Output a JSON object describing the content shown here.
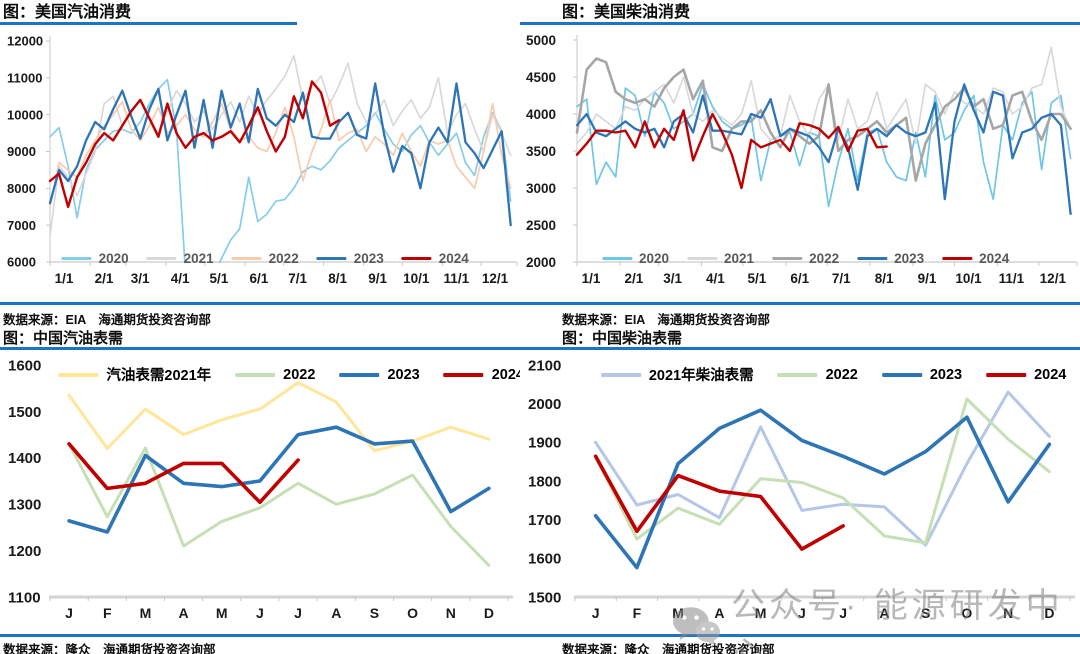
{
  "colors": {
    "accent_blue": "#1b74c5",
    "axis_line": "#c9c9c9",
    "axis_text": "#1a1a1a",
    "watermark_gray": "#7f7f7f"
  },
  "watermark": {
    "icon": "wechat-icon",
    "text": "公众号· 能源研发中心"
  },
  "chart_data": [
    {
      "type": "line",
      "title": "图：美国汽油消费",
      "source": "数据来源：EIA　海通期货投资咨询部",
      "x_mode": "weekly",
      "x_labels": [
        "1/1",
        "2/1",
        "3/1",
        "4/1",
        "5/1",
        "6/1",
        "7/1",
        "8/1",
        "9/1",
        "10/1",
        "11/1",
        "12/1"
      ],
      "ylim": [
        6000,
        12000
      ],
      "ystep": 1000,
      "grid": false,
      "legend_position": "bottom-center",
      "legend_text_color": "#595959",
      "series": [
        {
          "name": "2020",
          "color": "#86cdeb",
          "width": 1.7,
          "values": [
            9400,
            9650,
            8600,
            7200,
            8500,
            9050,
            9300,
            9550,
            9600,
            9500,
            9800,
            10300,
            10700,
            10950,
            9600,
            5700,
            5100,
            5300,
            5600,
            6100,
            6600,
            6900,
            8300,
            7100,
            7300,
            7650,
            7700,
            8000,
            8450,
            8600,
            8500,
            8750,
            9100,
            9300,
            9500,
            9700,
            10050,
            9600,
            9200,
            9000,
            9450,
            9700,
            9250,
            8900,
            9200,
            9500,
            8700,
            8350,
            9400,
            10050,
            9550,
            7650
          ]
        },
        {
          "name": "2021",
          "color": "#d9d9d9",
          "width": 1.7,
          "values": [
            6700,
            8600,
            8300,
            7800,
            8400,
            9000,
            10300,
            10500,
            9700,
            10050,
            10400,
            9900,
            9500,
            10100,
            10650,
            10300,
            9800,
            10100,
            9600,
            10000,
            10350,
            9800,
            10500,
            10000,
            10400,
            10700,
            11050,
            11600,
            10400,
            10750,
            11050,
            10300,
            10800,
            11400,
            10300,
            9800,
            10000,
            10400,
            9700,
            10100,
            10400,
            9900,
            10200,
            11000,
            9500,
            10000,
            10300,
            9600,
            9000,
            10000,
            9500,
            8900
          ]
        },
        {
          "name": "2022",
          "color": "#f8cbad",
          "width": 1.7,
          "values": [
            7500,
            8700,
            8500,
            8300,
            8900,
            9300,
            9700,
            10000,
            10350,
            9600,
            9300,
            9700,
            10200,
            9500,
            9700,
            10000,
            9600,
            9400,
            9800,
            10300,
            9600,
            9300,
            9400,
            9100,
            9000,
            9500,
            10200,
            9400,
            8200,
            9000,
            9600,
            10400,
            9300,
            9500,
            9600,
            9000,
            9400,
            9200,
            8900,
            9500,
            9000,
            8600,
            9300,
            9200,
            9300,
            8600,
            8300,
            8000,
            9000,
            10300,
            8900,
            8000
          ]
        },
        {
          "name": "2023",
          "color": "#2e75b6",
          "width": 2.3,
          "values": [
            7600,
            8500,
            8200,
            8600,
            9300,
            9800,
            9600,
            10150,
            10650,
            9950,
            9350,
            10150,
            10700,
            9300,
            10000,
            10650,
            9100,
            10400,
            9100,
            10650,
            9650,
            10300,
            9250,
            10700,
            9900,
            9700,
            10000,
            9800,
            10600,
            9400,
            9350,
            9350,
            9800,
            10050,
            9450,
            9350,
            10850,
            9450,
            8450,
            9150,
            8950,
            8000,
            9250,
            9650,
            9250,
            10850,
            9250,
            8950,
            8550,
            9050,
            9550,
            7000
          ]
        },
        {
          "name": "2024",
          "color": "#c00000",
          "width": 2.4,
          "values": [
            8200,
            8400,
            7500,
            8300,
            8700,
            9200,
            9500,
            9300,
            9700,
            10100,
            10400,
            9900,
            9400,
            10300,
            9500,
            9100,
            9400,
            9500,
            9300,
            9400,
            9550,
            9250,
            9700,
            10200,
            9550,
            9000,
            9400,
            10500,
            9900,
            10900,
            10600,
            9700,
            9850
          ]
        }
      ]
    },
    {
      "type": "line",
      "title": "图：美国柴油消费",
      "source": "数据来源：EIA　海通期货投资咨询部",
      "x_mode": "weekly",
      "x_labels": [
        "1/1",
        "2/1",
        "3/1",
        "4/1",
        "5/1",
        "6/1",
        "7/1",
        "8/1",
        "9/1",
        "10/1",
        "11/1",
        "12/1"
      ],
      "ylim": [
        2000,
        5000
      ],
      "ystep": 500,
      "grid": false,
      "legend_position": "bottom-center",
      "legend_text_color": "#595959",
      "series": [
        {
          "name": "2020",
          "color": "#6ec6e8",
          "width": 1.7,
          "values": [
            4100,
            4200,
            3050,
            3350,
            3150,
            4350,
            4250,
            3700,
            4300,
            4150,
            3800,
            3900,
            4000,
            4400,
            4100,
            3900,
            3800,
            3850,
            3950,
            3100,
            3650,
            3700,
            3750,
            3300,
            3750,
            3700,
            2750,
            3350,
            3800,
            3100,
            3750,
            3800,
            3350,
            3150,
            3100,
            3750,
            3150,
            4250,
            3650,
            3750,
            4050,
            4250,
            3350,
            2850,
            3850,
            3650,
            4150,
            4300,
            3250,
            4150,
            4250,
            3400
          ]
        },
        {
          "name": "2021",
          "color": "#d9d9d9",
          "width": 1.7,
          "values": [
            3600,
            3750,
            4000,
            3900,
            3800,
            4100,
            4050,
            4200,
            4300,
            4400,
            4150,
            4500,
            4000,
            3900,
            4050,
            3950,
            3850,
            4000,
            4450,
            3800,
            3650,
            3700,
            4250,
            3900,
            3700,
            4200,
            4400,
            3650,
            4200,
            3800,
            3900,
            4300,
            3800,
            4000,
            4200,
            3600,
            4400,
            4300,
            4000,
            4300,
            4150,
            4100,
            4000,
            4350,
            4300,
            4000,
            4100,
            4350,
            4400,
            4900,
            4100,
            3800
          ]
        },
        {
          "name": "2022",
          "color": "#a6a6a6",
          "width": 2.6,
          "values": [
            3750,
            4600,
            4750,
            4700,
            4300,
            4200,
            4150,
            4200,
            4100,
            4350,
            4500,
            4600,
            4200,
            4450,
            3550,
            3500,
            3800,
            3900,
            3900,
            4050,
            3750,
            3550,
            3800,
            3700,
            3600,
            3700,
            4400,
            3500,
            3650,
            3700,
            3800,
            3900,
            3750,
            3850,
            3950,
            3100,
            3600,
            3850,
            4100,
            4200,
            4350,
            4100,
            4200,
            3800,
            3850,
            4250,
            4300,
            3900,
            3650,
            4000,
            4000,
            3800
          ]
        },
        {
          "name": "2023",
          "color": "#2e75b6",
          "width": 2.3,
          "values": [
            3850,
            4000,
            3750,
            3700,
            3800,
            3900,
            3800,
            3750,
            3800,
            3550,
            3900,
            4000,
            3750,
            4250,
            3775,
            3775,
            3750,
            3725,
            4000,
            3950,
            4200,
            3700,
            3800,
            3750,
            3700,
            3550,
            3350,
            3800,
            3550,
            2975,
            3700,
            3800,
            3700,
            3850,
            3750,
            3700,
            3750,
            4150,
            2850,
            3900,
            4400,
            4050,
            3750,
            4300,
            4250,
            3400,
            3750,
            3800,
            3950,
            4000,
            3850,
            2650
          ]
        },
        {
          "name": "2024",
          "color": "#c00000",
          "width": 2.4,
          "values": [
            3450,
            3600,
            3775,
            3775,
            3750,
            3775,
            3550,
            3900,
            3550,
            3800,
            3650,
            4050,
            3375,
            3700,
            4000,
            3750,
            3450,
            3000,
            3650,
            3550,
            3600,
            3650,
            3500,
            3875,
            3850,
            3800,
            3675,
            3825,
            3500,
            3775,
            3800,
            3550,
            3560
          ]
        }
      ]
    },
    {
      "type": "line",
      "title": "图：中国汽油表需",
      "source": "数据来源：隆众　海通期货投资咨询部",
      "x_mode": "monthly",
      "x_labels": [
        "J",
        "F",
        "M",
        "A",
        "M",
        "J",
        "J",
        "A",
        "S",
        "O",
        "N",
        "D"
      ],
      "ylim": [
        1100,
        1600
      ],
      "ystep": 100,
      "grid": false,
      "legend_position": "top-center",
      "legend_text_color": "#000000",
      "series": [
        {
          "name": "汽油表需2021年",
          "color": "#ffe699",
          "width": 3,
          "values": [
            1535,
            1420,
            1505,
            1450,
            1482,
            1505,
            1562,
            1520,
            1415,
            1436,
            1466,
            1440
          ]
        },
        {
          "name": "2022",
          "color": "#c5e0b4",
          "width": 3,
          "values": [
            1430,
            1273,
            1421,
            1210,
            1263,
            1292,
            1345,
            1300,
            1322,
            1363,
            1252,
            1168
          ]
        },
        {
          "name": "2023",
          "color": "#2e75b6",
          "width": 3.6,
          "values": [
            1264,
            1240,
            1405,
            1345,
            1338,
            1350,
            1450,
            1466,
            1430,
            1436,
            1284,
            1334
          ]
        },
        {
          "name": "2024",
          "color": "#c00000",
          "width": 3.6,
          "values": [
            1430,
            1334,
            1345,
            1388,
            1388,
            1304,
            1395
          ]
        }
      ]
    },
    {
      "type": "line",
      "title": "图：中国柴油表需",
      "source": "数据来源：隆众　海通期货投资咨询部",
      "x_mode": "monthly",
      "x_labels": [
        "J",
        "F",
        "M",
        "A",
        "M",
        "J",
        "J",
        "A",
        "S",
        "O",
        "N",
        "D"
      ],
      "ylim": [
        1500,
        2100
      ],
      "ystep": 100,
      "grid": false,
      "legend_position": "top-center",
      "legend_text_color": "#000000",
      "series": [
        {
          "name": "2021年柴油表需",
          "color": "#b4c7e7",
          "width": 3,
          "values": [
            1900,
            1738,
            1765,
            1705,
            1940,
            1724,
            1740,
            1733,
            1634,
            1845,
            2030,
            1915
          ]
        },
        {
          "name": "2022",
          "color": "#c5e0b4",
          "width": 3,
          "values": [
            1862,
            1650,
            1730,
            1688,
            1806,
            1796,
            1756,
            1658,
            1640,
            2012,
            1908,
            1824
          ]
        },
        {
          "name": "2023",
          "color": "#2e75b6",
          "width": 3.6,
          "values": [
            1710,
            1576,
            1845,
            1936,
            1983,
            1905,
            1864,
            1818,
            1876,
            1965,
            1746,
            1895
          ]
        },
        {
          "name": "2024",
          "color": "#c00000",
          "width": 3.6,
          "values": [
            1864,
            1670,
            1814,
            1774,
            1760,
            1624,
            1684
          ]
        }
      ]
    }
  ]
}
